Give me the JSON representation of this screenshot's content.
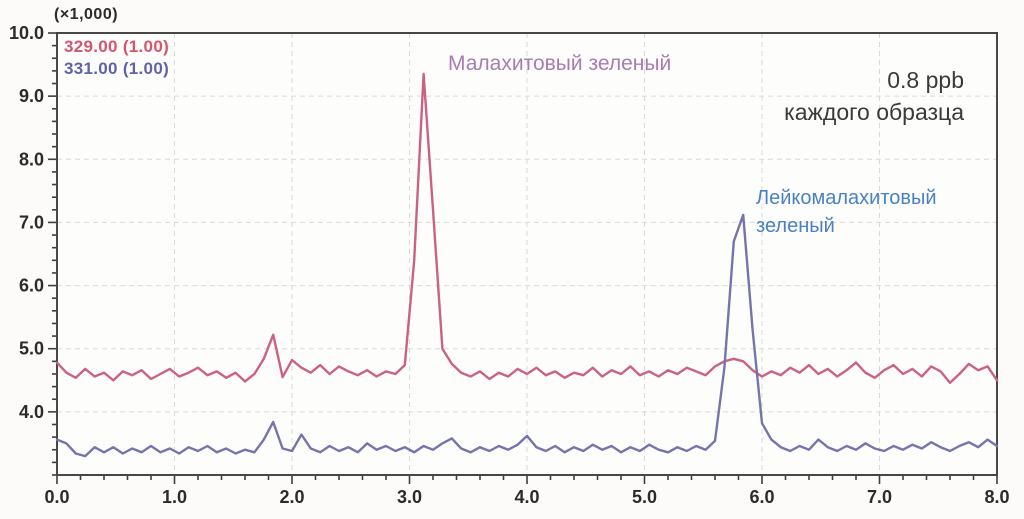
{
  "colors": {
    "background": "#fcfbf9",
    "plot_background": "#fdfdfc",
    "axis": "#474747",
    "tick": "#3f3f3f",
    "grid": "#d9d9d6",
    "tick_label": "#2b2b2b"
  },
  "legend": {
    "items": [
      {
        "label": "329.00 (1.00)",
        "color": "#d5556f"
      },
      {
        "label": "331.00 (1.00)",
        "color": "#5e63a7"
      }
    ]
  },
  "annotations": {
    "malachite_label": "Малахитовый зеленый",
    "malachite_color": "#a77cb5",
    "concentration_line1": "0.8 ppb",
    "concentration_line2": "каждого образца",
    "concentration_color": "#3a3a3a",
    "leuco_line1": "Лейкомалахитовый",
    "leuco_line2": "зеленый",
    "leuco_color": "#4a81c2"
  },
  "chart_data": {
    "type": "line",
    "title": "",
    "xlabel": "",
    "ylabel": "",
    "y_axis_unit_label": "(×1,000)",
    "xlim": [
      0.0,
      8.0
    ],
    "ylim": [
      3.0,
      10.0
    ],
    "x_major_ticks": [
      0,
      1,
      2,
      3,
      4,
      5,
      6,
      7,
      8
    ],
    "x_tick_labels": [
      "0.0",
      "1.0",
      "2.0",
      "3.0",
      "4.0",
      "5.0",
      "6.0",
      "7.0",
      "8.0"
    ],
    "y_major_ticks": [
      4,
      5,
      6,
      7,
      8,
      9,
      10
    ],
    "y_tick_labels": [
      "4.0",
      "5.0",
      "6.0",
      "7.0",
      "8.0",
      "9.0",
      "10.0"
    ],
    "minor_tick_step": 0.2,
    "grid": "major-dashed",
    "legend_position": "top-left-inside",
    "x_step": 0.08,
    "series": [
      {
        "name": "329.00 (1.00)",
        "analyte": "Малахитовый зеленый",
        "color": "#cc6282",
        "baseline": 4.6,
        "main_peak": {
          "rt": 3.12,
          "height": 9.35
        },
        "minor_peak": {
          "rt": 1.84,
          "height": 5.22
        },
        "values": [
          4.78,
          4.62,
          4.54,
          4.68,
          4.56,
          4.62,
          4.5,
          4.64,
          4.58,
          4.66,
          4.52,
          4.6,
          4.68,
          4.56,
          4.62,
          4.7,
          4.58,
          4.64,
          4.54,
          4.62,
          4.48,
          4.6,
          4.84,
          5.22,
          4.55,
          4.82,
          4.7,
          4.62,
          4.74,
          4.6,
          4.72,
          4.64,
          4.58,
          4.66,
          4.56,
          4.64,
          4.6,
          4.74,
          6.4,
          9.35,
          7.2,
          5.0,
          4.76,
          4.62,
          4.56,
          4.64,
          4.52,
          4.62,
          4.56,
          4.68,
          4.6,
          4.7,
          4.58,
          4.64,
          4.54,
          4.62,
          4.58,
          4.7,
          4.56,
          4.66,
          4.6,
          4.72,
          4.58,
          4.64,
          4.56,
          4.66,
          4.6,
          4.7,
          4.64,
          4.58,
          4.72,
          4.8,
          4.84,
          4.8,
          4.66,
          4.56,
          4.64,
          4.58,
          4.7,
          4.62,
          4.74,
          4.6,
          4.68,
          4.56,
          4.66,
          4.78,
          4.62,
          4.54,
          4.66,
          4.74,
          4.6,
          4.68,
          4.56,
          4.72,
          4.64,
          4.46,
          4.6,
          4.76,
          4.66,
          4.72,
          4.5
        ]
      },
      {
        "name": "331.00 (1.00)",
        "analyte": "Лейкомалахитовый зеленый",
        "color": "#7574ac",
        "baseline": 3.4,
        "main_peak": {
          "rt": 5.84,
          "height": 7.12
        },
        "minor_peak": {
          "rt": 1.84,
          "height": 3.84
        },
        "values": [
          3.56,
          3.5,
          3.34,
          3.3,
          3.44,
          3.36,
          3.44,
          3.34,
          3.42,
          3.36,
          3.46,
          3.36,
          3.42,
          3.34,
          3.44,
          3.38,
          3.46,
          3.36,
          3.42,
          3.34,
          3.4,
          3.36,
          3.56,
          3.84,
          3.42,
          3.38,
          3.64,
          3.42,
          3.36,
          3.46,
          3.38,
          3.44,
          3.36,
          3.5,
          3.4,
          3.46,
          3.38,
          3.44,
          3.36,
          3.46,
          3.4,
          3.5,
          3.58,
          3.42,
          3.36,
          3.44,
          3.38,
          3.46,
          3.4,
          3.48,
          3.62,
          3.44,
          3.38,
          3.46,
          3.36,
          3.44,
          3.38,
          3.48,
          3.4,
          3.46,
          3.36,
          3.44,
          3.38,
          3.48,
          3.4,
          3.36,
          3.44,
          3.38,
          3.46,
          3.4,
          3.54,
          4.7,
          6.7,
          7.12,
          5.3,
          3.82,
          3.56,
          3.44,
          3.38,
          3.46,
          3.4,
          3.56,
          3.44,
          3.38,
          3.46,
          3.4,
          3.5,
          3.42,
          3.38,
          3.46,
          3.4,
          3.48,
          3.42,
          3.52,
          3.44,
          3.38,
          3.46,
          3.52,
          3.44,
          3.56,
          3.46
        ]
      }
    ]
  }
}
